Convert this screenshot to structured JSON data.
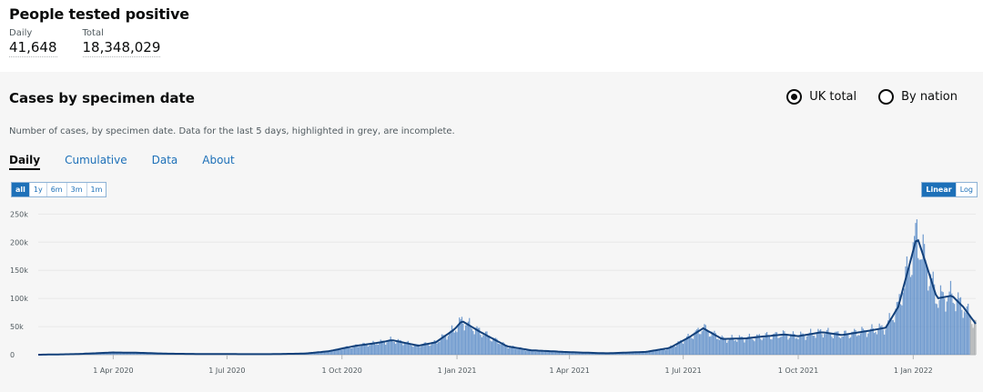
{
  "headline": {
    "title": "People tested positive",
    "daily_label": "Daily",
    "daily_value": "41,648",
    "total_label": "Total",
    "total_value": "18,348,029"
  },
  "card": {
    "title": "Cases by specimen date",
    "radio_uk": "UK total",
    "radio_nation": "By nation",
    "description": "Number of cases, by specimen date. Data for the last 5 days, highlighted in grey, are incomplete.",
    "tabs": [
      "Daily",
      "Cumulative",
      "Data",
      "About"
    ],
    "range_buttons": [
      "all",
      "1y",
      "6m",
      "3m",
      "1m"
    ],
    "scale_buttons": [
      "Linear",
      "Log"
    ]
  },
  "colors": {
    "bar": "#5b8cc8",
    "line": "#12407a",
    "incomplete": "#b1b4b6"
  },
  "chart_data": {
    "type": "bar",
    "title": "",
    "xlabel": "",
    "ylabel": "",
    "ylim": [
      0,
      270000
    ],
    "y_ticks": [
      0,
      50000,
      100000,
      150000,
      200000,
      250000
    ],
    "y_tick_labels": [
      "0",
      "50k",
      "100k",
      "150k",
      "200k",
      "250k"
    ],
    "x_ticks": [
      "2020-04-01",
      "2020-07-01",
      "2020-10-01",
      "2021-01-01",
      "2021-04-01",
      "2021-07-01",
      "2021-10-01",
      "2022-01-01"
    ],
    "x_tick_labels": [
      "1 Apr 2020",
      "1 Jul 2020",
      "1 Oct 2020",
      "1 Jan 2021",
      "1 Apr 2021",
      "1 Jul 2021",
      "1 Oct 2021",
      "1 Jan 2022"
    ],
    "x_range": [
      "2020-02-01",
      "2022-02-20"
    ],
    "series_approx_7day_avg": {
      "dates": [
        "2020-02-01",
        "2020-03-01",
        "2020-04-01",
        "2020-04-20",
        "2020-05-15",
        "2020-06-15",
        "2020-08-01",
        "2020-09-01",
        "2020-09-20",
        "2020-10-10",
        "2020-11-01",
        "2020-11-10",
        "2020-12-01",
        "2020-12-15",
        "2020-12-30",
        "2021-01-05",
        "2021-01-20",
        "2021-02-10",
        "2021-03-01",
        "2021-04-01",
        "2021-05-01",
        "2021-06-01",
        "2021-06-20",
        "2021-07-05",
        "2021-07-17",
        "2021-08-01",
        "2021-08-20",
        "2021-09-01",
        "2021-09-20",
        "2021-10-01",
        "2021-10-20",
        "2021-11-05",
        "2021-11-25",
        "2021-12-10",
        "2021-12-20",
        "2021-12-29",
        "2022-01-04",
        "2022-01-10",
        "2022-01-20",
        "2022-02-01",
        "2022-02-10",
        "2022-02-20"
      ],
      "values": [
        0,
        1000,
        4000,
        3500,
        1800,
        1200,
        900,
        2000,
        6000,
        15000,
        22000,
        26000,
        16000,
        22000,
        45000,
        60000,
        40000,
        15000,
        8000,
        4500,
        2500,
        5000,
        12000,
        30000,
        47000,
        28000,
        29000,
        32000,
        36000,
        33000,
        40000,
        35000,
        42000,
        48000,
        85000,
        160000,
        210000,
        170000,
        100000,
        105000,
        85000,
        55000
      ]
    }
  }
}
